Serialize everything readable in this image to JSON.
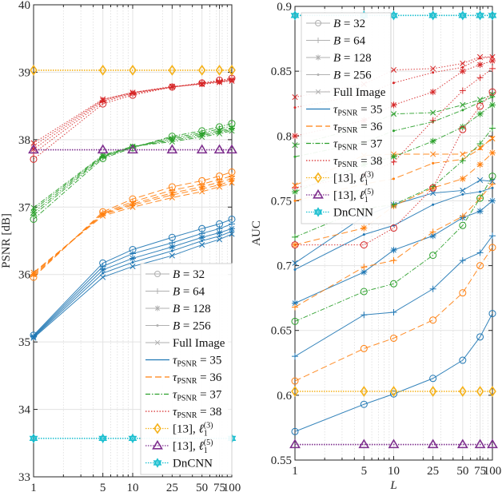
{
  "chart_data": [
    {
      "type": "line",
      "title": "",
      "xlabel": "L",
      "ylabel": "PSNR [dB]",
      "xscale": "log",
      "x": [
        1,
        5,
        10,
        25,
        50,
        75,
        100
      ],
      "xticks": [
        "1",
        "5",
        "10",
        "25",
        "50",
        "75",
        "100"
      ],
      "ylim": [
        33,
        40
      ],
      "yticks": [
        "33",
        "34",
        "35",
        "36",
        "37",
        "38",
        "39",
        "40"
      ],
      "grid": true,
      "legend_position": "bottom-right",
      "series": [
        {
          "name": "tau=35, B=32",
          "group": "tau35",
          "marker": "circle",
          "values": [
            35.1,
            36.17,
            36.37,
            36.55,
            36.68,
            36.75,
            36.82
          ]
        },
        {
          "name": "tau=35, B=64",
          "group": "tau35",
          "marker": "plus",
          "values": [
            35.09,
            36.12,
            36.31,
            36.47,
            36.61,
            36.68,
            36.75
          ]
        },
        {
          "name": "tau=35, B=128",
          "group": "tau35",
          "marker": "star",
          "values": [
            35.08,
            36.07,
            36.24,
            36.41,
            36.55,
            36.62,
            36.68
          ]
        },
        {
          "name": "tau=35, B=256",
          "group": "tau35",
          "marker": "dot",
          "values": [
            35.07,
            36.02,
            36.18,
            36.35,
            36.5,
            36.57,
            36.64
          ]
        },
        {
          "name": "tau=35, Full Image",
          "group": "tau35",
          "marker": "x",
          "values": [
            35.06,
            35.96,
            36.12,
            36.28,
            36.44,
            36.52,
            36.6
          ]
        },
        {
          "name": "tau=36, B=32",
          "group": "tau36",
          "marker": "circle",
          "values": [
            35.96,
            36.93,
            37.12,
            37.3,
            37.39,
            37.46,
            37.52
          ]
        },
        {
          "name": "tau=36, B=64",
          "group": "tau36",
          "marker": "plus",
          "values": [
            35.98,
            36.91,
            37.08,
            37.25,
            37.34,
            37.41,
            37.46
          ]
        },
        {
          "name": "tau=36, B=128",
          "group": "tau36",
          "marker": "star",
          "values": [
            36.0,
            36.9,
            37.05,
            37.21,
            37.3,
            37.37,
            37.42
          ]
        },
        {
          "name": "tau=36, B=256",
          "group": "tau36",
          "marker": "dot",
          "values": [
            36.02,
            36.89,
            37.03,
            37.18,
            37.27,
            37.33,
            37.39
          ]
        },
        {
          "name": "tau=36, Full Image",
          "group": "tau36",
          "marker": "x",
          "values": [
            36.03,
            36.87,
            37.0,
            37.14,
            37.23,
            37.3,
            37.36
          ]
        },
        {
          "name": "tau=37, B=32",
          "group": "tau37",
          "marker": "circle",
          "values": [
            36.82,
            37.72,
            37.88,
            38.05,
            38.13,
            38.19,
            38.24
          ]
        },
        {
          "name": "tau=37, B=64",
          "group": "tau37",
          "marker": "plus",
          "values": [
            36.88,
            37.74,
            37.89,
            38.03,
            38.1,
            38.16,
            38.2
          ]
        },
        {
          "name": "tau=37, B=128",
          "group": "tau37",
          "marker": "star",
          "values": [
            36.92,
            37.75,
            37.89,
            38.01,
            38.08,
            38.13,
            38.17
          ]
        },
        {
          "name": "tau=37, B=256",
          "group": "tau37",
          "marker": "dot",
          "values": [
            36.96,
            37.76,
            37.9,
            37.99,
            38.06,
            38.11,
            38.15
          ]
        },
        {
          "name": "tau=37, Full Image",
          "group": "tau37",
          "marker": "x",
          "values": [
            36.99,
            37.77,
            37.9,
            37.97,
            38.04,
            38.09,
            38.13
          ]
        },
        {
          "name": "tau=38, B=32",
          "group": "tau38",
          "marker": "circle",
          "values": [
            37.71,
            38.53,
            38.66,
            38.78,
            38.84,
            38.88,
            38.91
          ]
        },
        {
          "name": "tau=38, B=64",
          "group": "tau38",
          "marker": "plus",
          "values": [
            37.8,
            38.56,
            38.68,
            38.78,
            38.84,
            38.87,
            38.9
          ]
        },
        {
          "name": "tau=38, B=128",
          "group": "tau38",
          "marker": "star",
          "values": [
            37.86,
            38.58,
            38.69,
            38.78,
            38.83,
            38.86,
            38.89
          ]
        },
        {
          "name": "tau=38, B=256",
          "group": "tau38",
          "marker": "dot",
          "values": [
            37.91,
            38.59,
            38.7,
            38.78,
            38.83,
            38.86,
            38.88
          ]
        },
        {
          "name": "tau=38, Full Image",
          "group": "tau38",
          "marker": "x",
          "values": [
            37.95,
            38.6,
            38.7,
            38.79,
            38.82,
            38.85,
            38.87
          ]
        },
        {
          "name": "[13], l1(3)",
          "group": "ref3",
          "marker": "diamond",
          "values": [
            39.03,
            39.03,
            39.03,
            39.03,
            39.03,
            39.03,
            39.03
          ]
        },
        {
          "name": "[13], l1(5)",
          "group": "ref5",
          "marker": "triangle",
          "values": [
            37.85,
            37.85,
            37.85,
            37.85,
            37.85,
            37.85,
            37.85
          ]
        },
        {
          "name": "DnCNN",
          "group": "dncnn",
          "marker": "hexagram",
          "values": [
            33.57,
            33.57,
            33.57,
            null,
            null,
            null,
            33.57
          ]
        }
      ]
    },
    {
      "type": "line",
      "title": "",
      "xlabel": "L",
      "ylabel": "AUC",
      "xscale": "log",
      "x": [
        1,
        5,
        10,
        25,
        50,
        75,
        100
      ],
      "xticks": [
        "1",
        "5",
        "10",
        "25",
        "50",
        "75",
        "100"
      ],
      "ylim": [
        0.55,
        0.9
      ],
      "yticks": [
        "0.55",
        "0.6",
        "0.65",
        "0.7",
        "0.75",
        "0.8",
        "0.85",
        "0.9"
      ],
      "grid": true,
      "legend_position": "top-left",
      "series": [
        {
          "name": "tau=35, B=32",
          "group": "tau35",
          "marker": "circle",
          "values": [
            0.572,
            0.593,
            0.601,
            0.613,
            0.627,
            0.645,
            0.663
          ]
        },
        {
          "name": "tau=35, B=64",
          "group": "tau35",
          "marker": "plus",
          "values": [
            0.63,
            0.662,
            0.664,
            0.682,
            0.704,
            0.71,
            0.723
          ]
        },
        {
          "name": "tau=35, B=128",
          "group": "tau35",
          "marker": "star",
          "values": [
            0.671,
            0.695,
            0.712,
            0.723,
            0.737,
            0.742,
            0.75
          ]
        },
        {
          "name": "tau=35, B=256",
          "group": "tau35",
          "marker": "dot",
          "values": [
            0.697,
            0.724,
            0.731,
            0.747,
            0.755,
            0.757,
            0.76
          ]
        },
        {
          "name": "tau=35, Full Image",
          "group": "tau35",
          "marker": "x",
          "values": [
            0.702,
            0.738,
            0.747,
            0.756,
            0.758,
            0.766,
            0.765
          ]
        },
        {
          "name": "tau=36, B=32",
          "group": "tau36",
          "marker": "circle",
          "values": [
            0.611,
            0.636,
            0.644,
            0.658,
            0.679,
            0.7,
            0.714
          ]
        },
        {
          "name": "tau=36, B=64",
          "group": "tau36",
          "marker": "plus",
          "values": [
            0.668,
            0.699,
            0.704,
            0.726,
            0.738,
            0.752,
            0.763
          ]
        },
        {
          "name": "tau=36, B=128",
          "group": "tau36",
          "marker": "star",
          "values": [
            0.716,
            0.729,
            0.746,
            0.76,
            0.767,
            0.778,
            0.787
          ]
        },
        {
          "name": "tau=36, B=256",
          "group": "tau36",
          "marker": "dot",
          "values": [
            0.75,
            0.763,
            0.767,
            0.779,
            0.782,
            0.79,
            0.799
          ]
        },
        {
          "name": "tau=36, Full Image",
          "group": "tau36",
          "marker": "x",
          "values": [
            0.762,
            0.785,
            0.786,
            0.786,
            0.786,
            0.791,
            0.798
          ]
        },
        {
          "name": "tau=37, B=32",
          "group": "tau37",
          "marker": "circle",
          "values": [
            0.657,
            0.68,
            0.686,
            0.708,
            0.731,
            0.752,
            0.769
          ]
        },
        {
          "name": "tau=37, B=64",
          "group": "tau37",
          "marker": "plus",
          "values": [
            0.722,
            0.744,
            0.747,
            0.761,
            0.781,
            0.794,
            0.806
          ]
        },
        {
          "name": "tau=37, B=128",
          "group": "tau37",
          "marker": "star",
          "values": [
            0.757,
            0.778,
            0.784,
            0.796,
            0.807,
            0.817,
            0.824
          ]
        },
        {
          "name": "tau=37, B=256",
          "group": "tau37",
          "marker": "dot",
          "values": [
            0.784,
            0.795,
            0.804,
            0.811,
            0.82,
            0.826,
            0.83
          ]
        },
        {
          "name": "tau=37, Full Image",
          "group": "tau37",
          "marker": "x",
          "values": [
            0.793,
            0.807,
            0.817,
            0.818,
            0.824,
            0.828,
            0.832
          ]
        },
        {
          "name": "tau=38, B=32",
          "group": "tau38",
          "marker": "circle",
          "values": [
            0.716,
            0.716,
            0.729,
            0.76,
            0.805,
            0.823,
            0.834
          ]
        },
        {
          "name": "tau=38, B=64",
          "group": "tau38",
          "marker": "plus",
          "values": [
            0.76,
            0.77,
            0.78,
            0.812,
            0.835,
            0.845,
            0.852
          ]
        },
        {
          "name": "tau=38, B=128",
          "group": "tau38",
          "marker": "star",
          "values": [
            0.8,
            0.812,
            0.824,
            0.834,
            0.85,
            0.855,
            0.858
          ]
        },
        {
          "name": "tau=38, B=256",
          "group": "tau38",
          "marker": "dot",
          "values": [
            0.822,
            0.832,
            0.841,
            0.849,
            0.853,
            0.86,
            0.861
          ]
        },
        {
          "name": "tau=38, Full Image",
          "group": "tau38",
          "marker": "x",
          "values": [
            0.83,
            0.84,
            0.851,
            0.852,
            0.856,
            0.861,
            0.861
          ]
        },
        {
          "name": "[13], l1(3)",
          "group": "ref3",
          "marker": "diamond",
          "values": [
            0.603,
            0.603,
            0.603,
            0.603,
            0.603,
            0.603,
            0.603
          ]
        },
        {
          "name": "[13], l1(5)",
          "group": "ref5",
          "marker": "triangle",
          "values": [
            0.562,
            0.562,
            0.562,
            0.562,
            0.562,
            0.562,
            0.562
          ]
        },
        {
          "name": "DnCNN",
          "group": "dncnn",
          "marker": "hexagram",
          "values": [
            0.893,
            0.893,
            0.893,
            0.893,
            0.893,
            0.893,
            0.893
          ]
        }
      ]
    }
  ],
  "styles": {
    "tau35": {
      "color": "#1f77b4",
      "dash": ""
    },
    "tau36": {
      "color": "#ff7f0e",
      "dash": "8 4"
    },
    "tau37": {
      "color": "#2ca02c",
      "dash": "6 2 1.5 2"
    },
    "tau38": {
      "color": "#d62728",
      "dash": "1.5 2"
    },
    "ref3": {
      "color": "#f5b21b",
      "dash": "1.5 1.5"
    },
    "ref5": {
      "color": "#7e2f8e",
      "dash": "1.5 1.5"
    },
    "dncnn": {
      "color": "#17becf",
      "dash": "1.5 1.5"
    }
  },
  "legend": {
    "entries": [
      {
        "key": "b32",
        "label": "B = 32",
        "marker": "circle",
        "style": "gray-marker"
      },
      {
        "key": "b64",
        "label": "B = 64",
        "marker": "plus",
        "style": "gray-marker"
      },
      {
        "key": "b128",
        "label": "B = 128",
        "marker": "star",
        "style": "gray-marker"
      },
      {
        "key": "b256",
        "label": "B = 256",
        "marker": "dot",
        "style": "gray-marker"
      },
      {
        "key": "full",
        "label": "Full Image",
        "marker": "x",
        "style": "gray-marker"
      },
      {
        "key": "tau35",
        "label": "τPSNR = 35",
        "marker": "none",
        "style": "tau35"
      },
      {
        "key": "tau36",
        "label": "τPSNR = 36",
        "marker": "none",
        "style": "tau36"
      },
      {
        "key": "tau37",
        "label": "τPSNR = 37",
        "marker": "none",
        "style": "tau37"
      },
      {
        "key": "tau38",
        "label": "τPSNR = 38",
        "marker": "none",
        "style": "tau38"
      },
      {
        "key": "ref3",
        "label": "[13], ℓ1(3)",
        "marker": "diamond",
        "style": "ref3"
      },
      {
        "key": "ref5",
        "label": "[13], ℓ1(5)",
        "marker": "triangle",
        "style": "ref5"
      },
      {
        "key": "dncnn",
        "label": "DnCNN",
        "marker": "hexagram",
        "style": "dncnn"
      }
    ]
  }
}
